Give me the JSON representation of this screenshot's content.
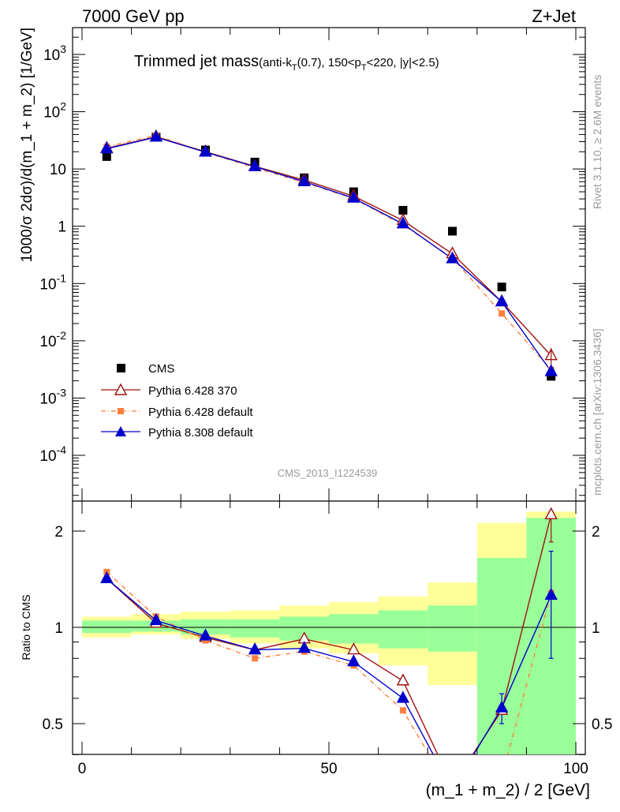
{
  "header": {
    "left": "7000 GeV pp",
    "right": "Z+Jet"
  },
  "title": {
    "main": "Trimmed jet mass",
    "sub_prefix": "(anti-k",
    "sub_T1": "T",
    "sub_mid": "(0.7), 150<p",
    "sub_T2": "T",
    "sub_suffix": "<220, |y|<2.5)"
  },
  "side": {
    "rivet": "Rivet 3.1.10, ≥ 2.6M events",
    "mcplots": "mcplots.cern.ch [arXiv:1306.3436]"
  },
  "watermark": "CMS_2013_I1224539",
  "colors": {
    "data": "#000000",
    "py6_370": "#a01010",
    "py6_default": "#ff7f3f",
    "py8_default": "#0000cc",
    "band_inner": "#99ff99",
    "band_outer": "#ffff99"
  },
  "chart_data": [
    {
      "type": "scatter",
      "panel": "main",
      "xlabel": "",
      "ylabel": "1000/σ 2dσ)/d(m_1 + m_2) [1/GeV]",
      "xlim": [
        0,
        100
      ],
      "ylim": [
        2e-05,
        3000
      ],
      "log_y": true,
      "y_ticks": [
        "10^-4",
        "10^-3",
        "10^-2",
        "10^-1",
        "1",
        "10",
        "10^2",
        "10^3"
      ],
      "legend_position": "bottom-left",
      "x": [
        5,
        15,
        25,
        35,
        45,
        55,
        65,
        75,
        85,
        95
      ],
      "series": [
        {
          "name": "CMS",
          "marker": "square",
          "values": [
            16.5,
            36,
            21.5,
            13.2,
            7.0,
            4.0,
            1.9,
            0.82,
            0.087,
            0.0024
          ]
        },
        {
          "name": "Pythia 6.428 370",
          "marker": "open-triangle",
          "values": [
            23,
            36.5,
            20,
            11.1,
            6.4,
            3.35,
            1.26,
            0.33,
            0.048,
            0.0055
          ]
        },
        {
          "name": "Pythia 6.428 default",
          "marker": "square-small",
          "values": [
            24.5,
            38.5,
            19.5,
            10.5,
            5.8,
            3.05,
            1.05,
            0.28,
            0.03,
            0.0031
          ]
        },
        {
          "name": "Pythia 8.308 default",
          "marker": "filled-triangle",
          "values": [
            22.5,
            36,
            19.7,
            11.0,
            6.0,
            3.1,
            1.1,
            0.27,
            0.048,
            0.0029
          ]
        }
      ]
    },
    {
      "type": "line",
      "panel": "ratio",
      "xlabel": "(m_1 + m_2) / 2 [GeV]",
      "ylabel": "Ratio to CMS",
      "xlim": [
        0,
        100
      ],
      "ylim": [
        0.35,
        2.3
      ],
      "x_ticks": [
        "0",
        "50",
        "100"
      ],
      "y_ticks": [
        "0.5",
        "1",
        "2"
      ],
      "x": [
        5,
        15,
        25,
        35,
        45,
        55,
        65,
        75,
        85,
        95
      ],
      "bands": {
        "edges": [
          0,
          10,
          20,
          30,
          40,
          50,
          60,
          70,
          80,
          90,
          100
        ],
        "inner_lo": [
          0.96,
          0.97,
          0.95,
          0.93,
          0.91,
          0.89,
          0.86,
          0.84,
          0.34,
          0.34
        ],
        "inner_hi": [
          1.05,
          1.05,
          1.06,
          1.06,
          1.08,
          1.1,
          1.13,
          1.17,
          1.65,
          2.2
        ],
        "outer_lo": [
          0.93,
          0.95,
          0.92,
          0.89,
          0.86,
          0.83,
          0.76,
          0.66,
          0.34,
          0.34
        ],
        "outer_hi": [
          1.08,
          1.1,
          1.12,
          1.13,
          1.17,
          1.2,
          1.25,
          1.38,
          2.12,
          2.3
        ]
      },
      "series": [
        {
          "name": "Pythia 6.428 370",
          "values": [
            1.42,
            1.03,
            0.93,
            0.85,
            0.92,
            0.85,
            0.68,
            0.32,
            0.55,
            2.25
          ]
        },
        {
          "name": "Pythia 6.428 default",
          "values": [
            1.49,
            1.08,
            0.91,
            0.8,
            0.84,
            0.76,
            0.55,
            0.3,
            0.34,
            1.28
          ]
        },
        {
          "name": "Pythia 8.308 default",
          "values": [
            1.42,
            1.05,
            0.94,
            0.85,
            0.86,
            0.78,
            0.6,
            0.31,
            0.56,
            1.26
          ]
        }
      ],
      "errors": [
        {
          "series": 2,
          "x": 85,
          "lo": 0.5,
          "hi": 0.62
        },
        {
          "series": 2,
          "x": 95,
          "lo": 0.8,
          "hi": 1.73
        },
        {
          "series": 0,
          "x": 95,
          "lo": 1.85,
          "hi": 2.3
        }
      ]
    }
  ]
}
